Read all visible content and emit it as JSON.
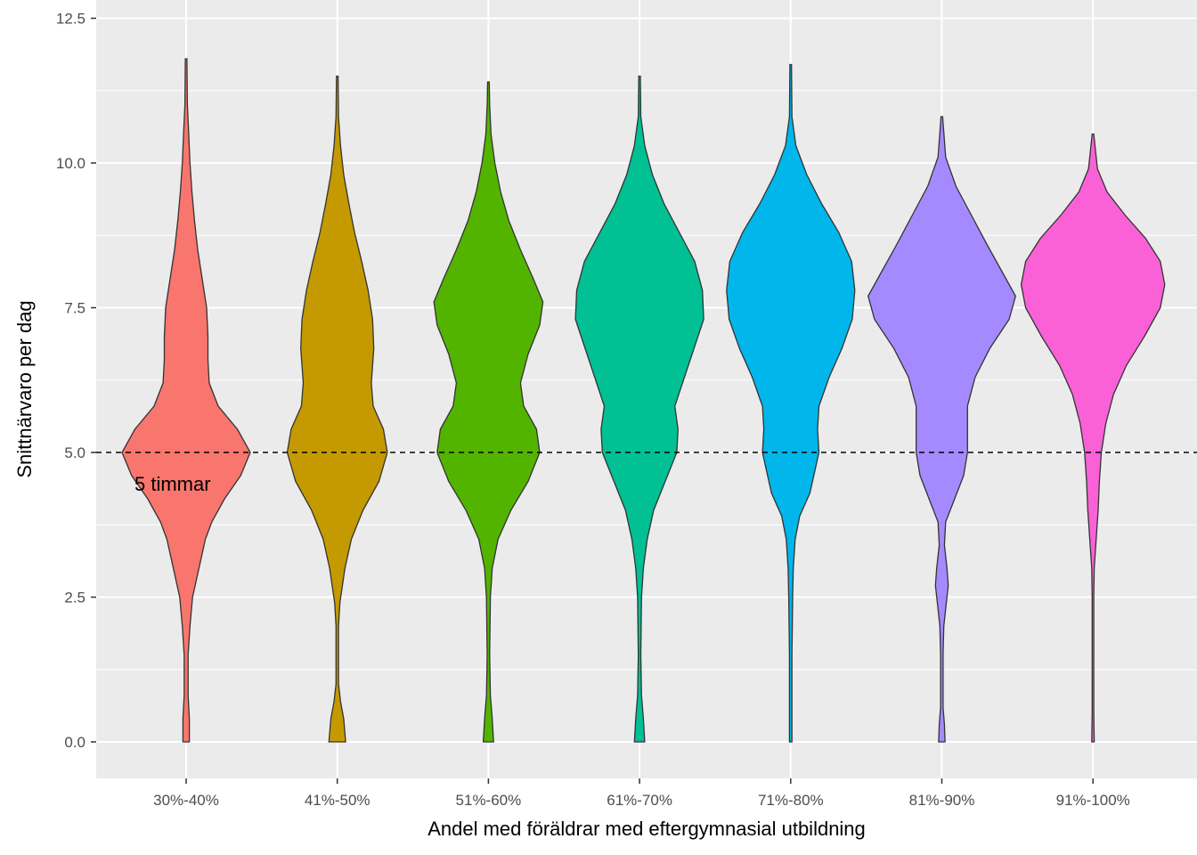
{
  "chart_data": {
    "type": "violin",
    "xlabel": "Andel med föräldrar med eftergymnasial utbildning",
    "ylabel": "Snittnärvaro per dag",
    "ylim": [
      -0.6,
      12.6
    ],
    "yticks": [
      0.0,
      2.5,
      5.0,
      7.5,
      10.0,
      12.5
    ],
    "ytick_labels": [
      "0.0",
      "2.5",
      "5.0",
      "7.5",
      "10.0",
      "12.5"
    ],
    "grid": true,
    "legend": "none",
    "reference_line": {
      "y": 5.0,
      "style": "dashed",
      "label": "5 timmar"
    },
    "categories": [
      "30%-40%",
      "41%-50%",
      "51%-60%",
      "61%-70%",
      "71%-80%",
      "81%-90%",
      "91%-100%"
    ],
    "series": [
      {
        "category": "30%-40%",
        "color": "#F8766D",
        "min": 0.0,
        "max": 11.8,
        "density": [
          [
            0,
            0.05
          ],
          [
            0.4,
            0.05
          ],
          [
            0.8,
            0.03
          ],
          [
            1.5,
            0.03
          ],
          [
            2.0,
            0.06
          ],
          [
            2.5,
            0.1
          ],
          [
            3.0,
            0.2
          ],
          [
            3.5,
            0.3
          ],
          [
            3.8,
            0.4
          ],
          [
            4.2,
            0.6
          ],
          [
            4.6,
            0.85
          ],
          [
            5.0,
            1.0
          ],
          [
            5.4,
            0.8
          ],
          [
            5.8,
            0.5
          ],
          [
            6.2,
            0.36
          ],
          [
            6.6,
            0.34
          ],
          [
            7.0,
            0.34
          ],
          [
            7.5,
            0.32
          ],
          [
            8.0,
            0.25
          ],
          [
            8.5,
            0.18
          ],
          [
            9.0,
            0.13
          ],
          [
            9.5,
            0.09
          ],
          [
            10.0,
            0.06
          ],
          [
            10.5,
            0.04
          ],
          [
            11.0,
            0.02
          ],
          [
            11.8,
            0.0
          ]
        ]
      },
      {
        "category": "41%-50%",
        "color": "#C49A00",
        "min": 0.0,
        "max": 11.5,
        "density": [
          [
            0,
            0.13
          ],
          [
            0.4,
            0.1
          ],
          [
            0.7,
            0.05
          ],
          [
            1.0,
            0.02
          ],
          [
            1.5,
            0.02
          ],
          [
            2.0,
            0.02
          ],
          [
            2.4,
            0.04
          ],
          [
            3.0,
            0.12
          ],
          [
            3.5,
            0.22
          ],
          [
            4.0,
            0.4
          ],
          [
            4.5,
            0.65
          ],
          [
            5.0,
            0.78
          ],
          [
            5.4,
            0.72
          ],
          [
            5.8,
            0.56
          ],
          [
            6.2,
            0.53
          ],
          [
            6.8,
            0.57
          ],
          [
            7.3,
            0.55
          ],
          [
            7.8,
            0.48
          ],
          [
            8.3,
            0.38
          ],
          [
            8.8,
            0.27
          ],
          [
            9.3,
            0.18
          ],
          [
            9.8,
            0.1
          ],
          [
            10.3,
            0.05
          ],
          [
            10.8,
            0.02
          ],
          [
            11.5,
            0.0
          ]
        ]
      },
      {
        "category": "51%-60%",
        "color": "#53B400",
        "min": 0.0,
        "max": 11.4,
        "density": [
          [
            0,
            0.08
          ],
          [
            0.4,
            0.06
          ],
          [
            0.8,
            0.03
          ],
          [
            1.5,
            0.02
          ],
          [
            2.5,
            0.03
          ],
          [
            3.0,
            0.06
          ],
          [
            3.5,
            0.15
          ],
          [
            4.0,
            0.35
          ],
          [
            4.5,
            0.62
          ],
          [
            5.0,
            0.8
          ],
          [
            5.4,
            0.75
          ],
          [
            5.8,
            0.55
          ],
          [
            6.2,
            0.5
          ],
          [
            6.7,
            0.62
          ],
          [
            7.2,
            0.8
          ],
          [
            7.6,
            0.85
          ],
          [
            8.0,
            0.7
          ],
          [
            8.5,
            0.5
          ],
          [
            9.0,
            0.32
          ],
          [
            9.5,
            0.19
          ],
          [
            10.0,
            0.1
          ],
          [
            10.5,
            0.04
          ],
          [
            11.0,
            0.02
          ],
          [
            11.4,
            0.0
          ]
        ]
      },
      {
        "category": "61%-70%",
        "color": "#00C094",
        "min": 0.0,
        "max": 11.5,
        "density": [
          [
            0,
            0.08
          ],
          [
            0.4,
            0.06
          ],
          [
            0.8,
            0.03
          ],
          [
            1.5,
            0.02
          ],
          [
            2.5,
            0.03
          ],
          [
            3.0,
            0.06
          ],
          [
            3.5,
            0.12
          ],
          [
            4.0,
            0.22
          ],
          [
            4.5,
            0.4
          ],
          [
            5.0,
            0.58
          ],
          [
            5.4,
            0.6
          ],
          [
            5.8,
            0.55
          ],
          [
            6.3,
            0.7
          ],
          [
            6.8,
            0.85
          ],
          [
            7.3,
            1.0
          ],
          [
            7.8,
            0.98
          ],
          [
            8.3,
            0.86
          ],
          [
            8.8,
            0.62
          ],
          [
            9.3,
            0.38
          ],
          [
            9.8,
            0.2
          ],
          [
            10.3,
            0.08
          ],
          [
            10.8,
            0.02
          ],
          [
            11.5,
            0.0
          ]
        ]
      },
      {
        "category": "71%-80%",
        "color": "#00B6EB",
        "min": 0.0,
        "max": 11.7,
        "density": [
          [
            0,
            0.02
          ],
          [
            0.5,
            0.02
          ],
          [
            1.5,
            0.02
          ],
          [
            2.5,
            0.03
          ],
          [
            3.0,
            0.04
          ],
          [
            3.5,
            0.07
          ],
          [
            3.9,
            0.14
          ],
          [
            4.3,
            0.3
          ],
          [
            4.7,
            0.38
          ],
          [
            5.0,
            0.44
          ],
          [
            5.4,
            0.42
          ],
          [
            5.8,
            0.44
          ],
          [
            6.3,
            0.6
          ],
          [
            6.8,
            0.8
          ],
          [
            7.3,
            0.96
          ],
          [
            7.8,
            1.0
          ],
          [
            8.3,
            0.95
          ],
          [
            8.8,
            0.75
          ],
          [
            9.3,
            0.48
          ],
          [
            9.8,
            0.25
          ],
          [
            10.3,
            0.08
          ],
          [
            10.8,
            0.02
          ],
          [
            11.7,
            0.0
          ]
        ]
      },
      {
        "category": "81%-90%",
        "color": "#A58AFF",
        "min": 0.0,
        "max": 10.8,
        "density": [
          [
            0,
            0.05
          ],
          [
            0.3,
            0.04
          ],
          [
            0.6,
            0.02
          ],
          [
            1.5,
            0.02
          ],
          [
            2.0,
            0.03
          ],
          [
            2.3,
            0.06
          ],
          [
            2.7,
            0.1
          ],
          [
            3.0,
            0.08
          ],
          [
            3.4,
            0.04
          ],
          [
            3.8,
            0.06
          ],
          [
            4.2,
            0.2
          ],
          [
            4.6,
            0.34
          ],
          [
            5.0,
            0.4
          ],
          [
            5.4,
            0.4
          ],
          [
            5.8,
            0.4
          ],
          [
            6.3,
            0.52
          ],
          [
            6.8,
            0.75
          ],
          [
            7.3,
            1.05
          ],
          [
            7.7,
            1.15
          ],
          [
            8.1,
            0.95
          ],
          [
            8.6,
            0.7
          ],
          [
            9.1,
            0.46
          ],
          [
            9.6,
            0.22
          ],
          [
            10.1,
            0.06
          ],
          [
            10.8,
            0.0
          ]
        ]
      },
      {
        "category": "91%-100%",
        "color": "#FB61D7",
        "min": 0.0,
        "max": 10.5,
        "density": [
          [
            0,
            0.02
          ],
          [
            0.5,
            0.01
          ],
          [
            1.5,
            0.01
          ],
          [
            2.5,
            0.01
          ],
          [
            3.0,
            0.02
          ],
          [
            3.5,
            0.05
          ],
          [
            4.0,
            0.08
          ],
          [
            4.5,
            0.1
          ],
          [
            5.0,
            0.13
          ],
          [
            5.5,
            0.2
          ],
          [
            6.0,
            0.32
          ],
          [
            6.5,
            0.52
          ],
          [
            7.0,
            0.8
          ],
          [
            7.5,
            1.05
          ],
          [
            7.9,
            1.12
          ],
          [
            8.3,
            1.05
          ],
          [
            8.7,
            0.82
          ],
          [
            9.1,
            0.5
          ],
          [
            9.5,
            0.22
          ],
          [
            9.9,
            0.07
          ],
          [
            10.5,
            0.0
          ]
        ]
      }
    ]
  }
}
